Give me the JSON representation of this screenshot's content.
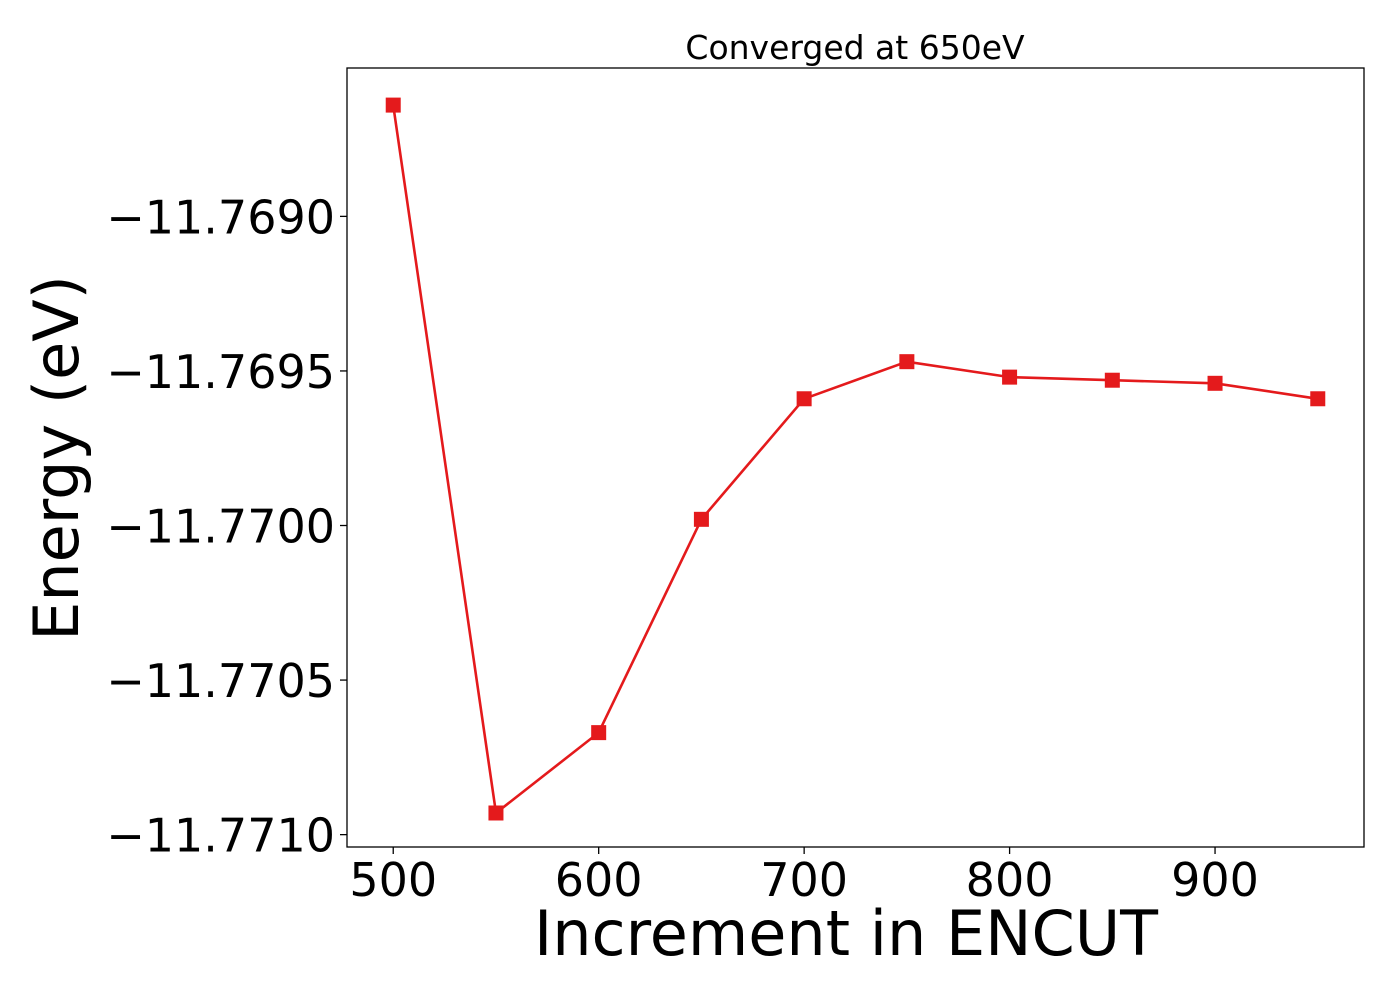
{
  "chart_data": {
    "type": "line",
    "title": "Converged at 650eV",
    "xlabel": "Increment in ENCUT",
    "ylabel": "Energy (eV)",
    "x": [
      500,
      550,
      600,
      650,
      700,
      750,
      800,
      850,
      900,
      950
    ],
    "series": [
      {
        "values": [
          -11.76864,
          -11.77093,
          -11.77067,
          -11.76998,
          -11.76959,
          -11.76947,
          -11.76952,
          -11.76953,
          -11.76954,
          -11.76959
        ],
        "color": "#e41a1c",
        "marker": "square"
      }
    ],
    "xlim": [
      477.5,
      972.5
    ],
    "ylim": [
      -11.77104,
      -11.76852
    ],
    "xticks": [
      500,
      600,
      700,
      800,
      900
    ],
    "xtick_labels": [
      "500",
      "600",
      "700",
      "800",
      "900"
    ],
    "yticks": [
      -11.769,
      -11.7695,
      -11.77,
      -11.7705,
      -11.771
    ],
    "ytick_labels": [
      "−11.7690",
      "−11.7695",
      "−11.7700",
      "−11.7705",
      "−11.7710"
    ],
    "grid": false,
    "legend": false
  }
}
